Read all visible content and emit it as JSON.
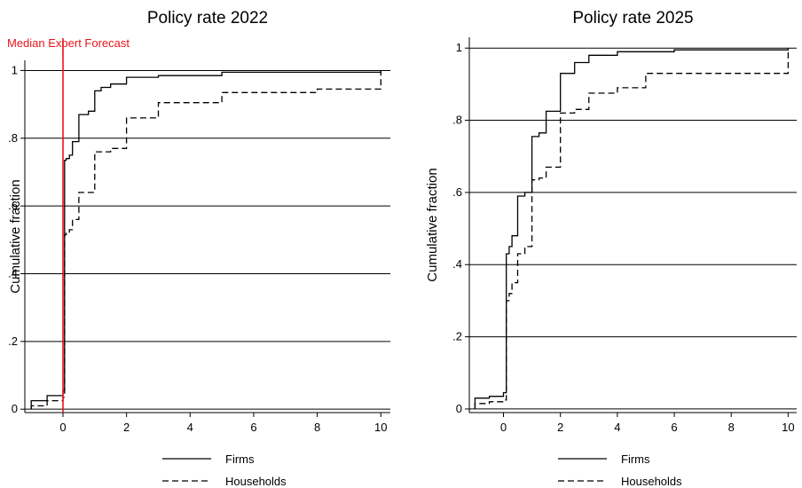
{
  "chart_data": [
    {
      "type": "line",
      "title": "Policy rate 2022",
      "xlabel": "",
      "ylabel": "Cumulative fraction",
      "xlim": [
        -1.2,
        10.3
      ],
      "ylim": [
        -0.01,
        1.03
      ],
      "xticks": [
        0,
        2,
        4,
        6,
        8,
        10
      ],
      "yticks": [
        0,
        0.2,
        0.4,
        0.6,
        0.8,
        1
      ],
      "ytick_labels": [
        "0",
        ".2",
        ".4",
        ".6",
        ".8",
        "1"
      ],
      "grid": "horizontal",
      "legend": "bottom",
      "annotation": {
        "text": "Median Expert Forecast",
        "x": 0,
        "color": "#e8141b"
      },
      "series": [
        {
          "name": "Firms",
          "style": "solid",
          "x": [
            -1,
            -0.5,
            0,
            0.05,
            0.1,
            0.2,
            0.3,
            0.5,
            0.8,
            1.0,
            1.2,
            1.5,
            2.0,
            3.0,
            5.0,
            10.0
          ],
          "y": [
            0.025,
            0.04,
            0.055,
            0.735,
            0.74,
            0.75,
            0.79,
            0.87,
            0.88,
            0.94,
            0.95,
            0.96,
            0.98,
            0.985,
            0.995,
            1.0
          ]
        },
        {
          "name": "Households",
          "style": "dashed",
          "x": [
            -1,
            -0.5,
            0,
            0.05,
            0.1,
            0.2,
            0.3,
            0.5,
            1.0,
            1.5,
            2.0,
            3.0,
            5.0,
            8.0,
            10.0
          ],
          "y": [
            0.01,
            0.025,
            0.035,
            0.515,
            0.52,
            0.53,
            0.56,
            0.64,
            0.76,
            0.77,
            0.86,
            0.905,
            0.935,
            0.945,
            1.0
          ]
        }
      ]
    },
    {
      "type": "line",
      "title": "Policy rate 2025",
      "xlabel": "",
      "ylabel": "Cumulative fraction",
      "xlim": [
        -1.2,
        10.3
      ],
      "ylim": [
        -0.01,
        1.03
      ],
      "xticks": [
        0,
        2,
        4,
        6,
        8,
        10
      ],
      "yticks": [
        0,
        0.2,
        0.4,
        0.6,
        0.8,
        1
      ],
      "ytick_labels": [
        "0",
        ".2",
        ".4",
        ".6",
        ".8",
        "1"
      ],
      "grid": "horizontal",
      "legend": "bottom",
      "series": [
        {
          "name": "Firms",
          "style": "solid",
          "x": [
            -1,
            -0.5,
            0,
            0.1,
            0.2,
            0.3,
            0.5,
            0.75,
            1.0,
            1.25,
            1.5,
            2.0,
            2.5,
            3.0,
            4.0,
            6.0,
            10.0
          ],
          "y": [
            0.03,
            0.035,
            0.045,
            0.43,
            0.45,
            0.48,
            0.59,
            0.6,
            0.755,
            0.765,
            0.825,
            0.93,
            0.96,
            0.98,
            0.99,
            0.995,
            1.0
          ]
        },
        {
          "name": "Households",
          "style": "dashed",
          "x": [
            -1,
            -0.5,
            0,
            0.1,
            0.2,
            0.3,
            0.5,
            0.75,
            1.0,
            1.25,
            1.5,
            2.0,
            2.5,
            3.0,
            4.0,
            5.0,
            10.0
          ],
          "y": [
            0.015,
            0.02,
            0.025,
            0.3,
            0.32,
            0.35,
            0.43,
            0.45,
            0.635,
            0.64,
            0.67,
            0.82,
            0.83,
            0.875,
            0.89,
            0.93,
            1.0
          ]
        }
      ]
    }
  ]
}
